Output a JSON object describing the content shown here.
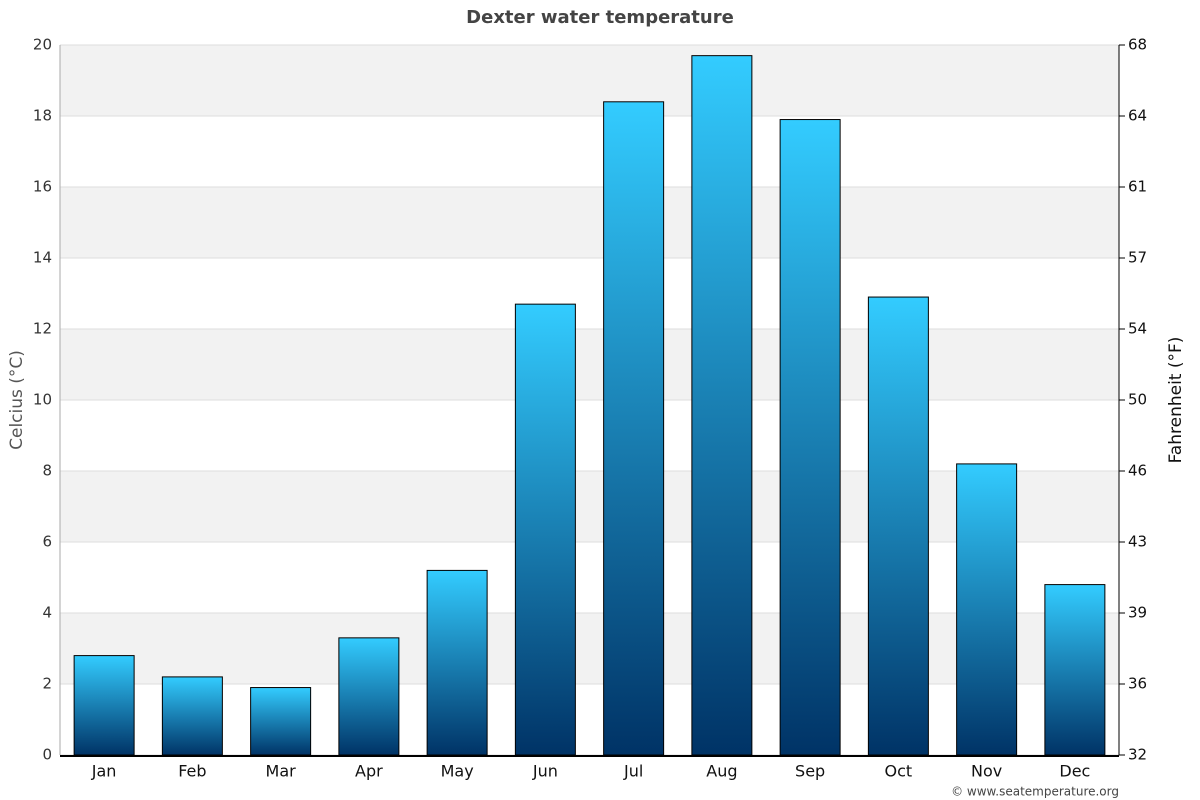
{
  "chart_data": {
    "type": "bar",
    "title": "Dexter water temperature",
    "categories": [
      "Jan",
      "Feb",
      "Mar",
      "Apr",
      "May",
      "Jun",
      "Jul",
      "Aug",
      "Sep",
      "Oct",
      "Nov",
      "Dec"
    ],
    "values": [
      2.8,
      2.2,
      1.9,
      3.3,
      5.2,
      12.7,
      18.4,
      19.7,
      17.9,
      12.9,
      8.2,
      4.8
    ],
    "gradient": [
      "#33ccff",
      "#003366"
    ],
    "y_label": "Celcius (°C)",
    "y2_label": "Fahrenheit (°F)",
    "ylim": [
      0,
      20
    ],
    "yticks": [
      0,
      2,
      4,
      6,
      8,
      10,
      12,
      14,
      16,
      18,
      20
    ],
    "y2lim": [
      32,
      68
    ],
    "y2ticks": [
      32,
      {
        "value": 35.6,
        "label": "36"
      },
      {
        "value": 39.2,
        "label": "39"
      },
      {
        "value": 42.8,
        "label": "43"
      },
      {
        "value": 46.4,
        "label": "46"
      },
      50,
      {
        "value": 53.6,
        "label": "54"
      },
      {
        "value": 57.2,
        "label": "57"
      },
      {
        "value": 60.8,
        "label": "61"
      },
      {
        "value": 64.4,
        "label": "64"
      },
      68
    ],
    "grid": true,
    "credit": "© www.seatemperature.org"
  }
}
